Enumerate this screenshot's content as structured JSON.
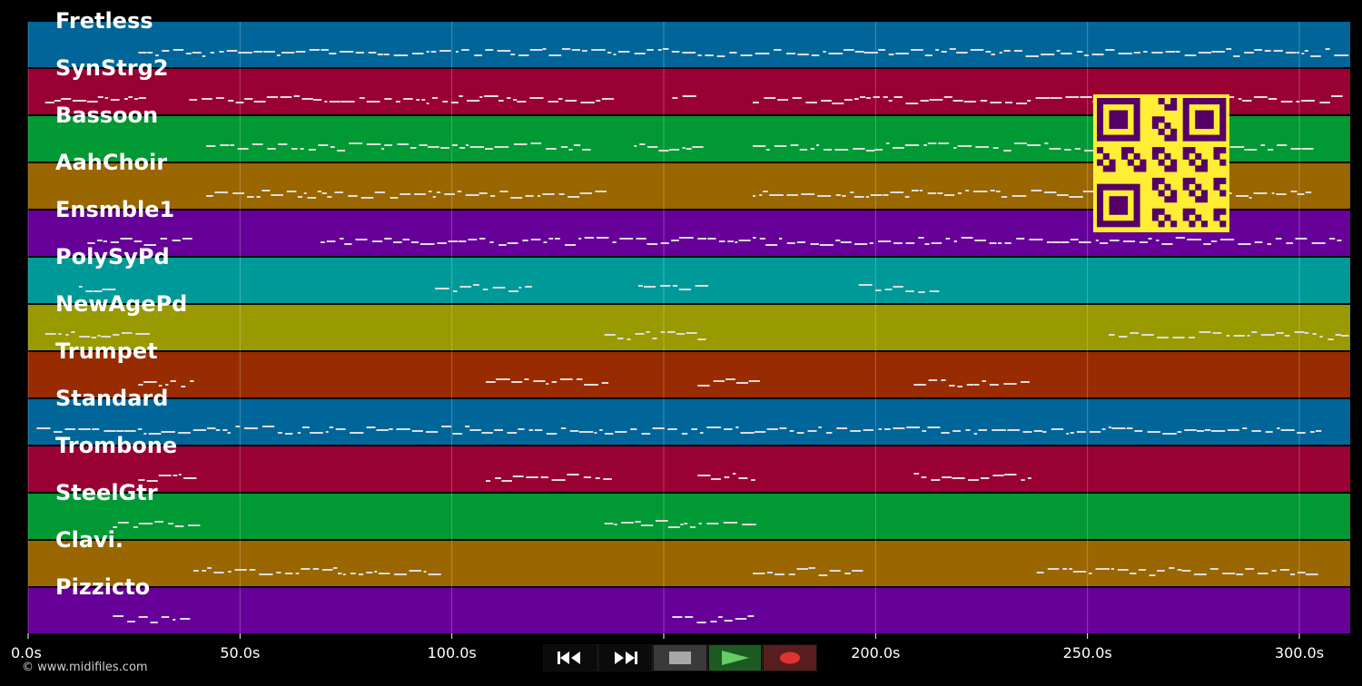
{
  "timeline": {
    "tracks": [
      {
        "name": "Fretless",
        "color": "#006699"
      },
      {
        "name": "SynStrg2",
        "color": "#990033"
      },
      {
        "name": "Bassoon",
        "color": "#009933"
      },
      {
        "name": "AahChoir",
        "color": "#996600"
      },
      {
        "name": "Ensmble1",
        "color": "#660099"
      },
      {
        "name": "PolySyPd",
        "color": "#009999"
      },
      {
        "name": "NewAgePd",
        "color": "#999900"
      },
      {
        "name": "Trumpet",
        "color": "#992b00"
      },
      {
        "name": "Standard",
        "color": "#006699"
      },
      {
        "name": "Trombone",
        "color": "#990033"
      },
      {
        "name": "SteelGtr",
        "color": "#009933"
      },
      {
        "name": "Clavi.",
        "color": "#996600"
      },
      {
        "name": "Pizzicto",
        "color": "#660099"
      }
    ],
    "time_ticks": [
      "0.0s",
      "50.0s",
      "100.0s",
      "150.0s",
      "200.0s",
      "250.0s",
      "300.0s"
    ],
    "time_tick_values": [
      0,
      50,
      100,
      150,
      200,
      250,
      300
    ],
    "time_max": 312,
    "grid": true,
    "note_color": "#dddddd"
  },
  "qr_code": {
    "icon": "qr-code-icon",
    "foreground": "#550066",
    "background": "#ffee33"
  },
  "copyright": "© www.midifiles.com",
  "transport": {
    "rewind_icon": "rewind-icon",
    "forward_icon": "fast-forward-icon",
    "stop_icon": "stop-icon",
    "play_icon": "play-icon",
    "record_icon": "record-icon"
  }
}
